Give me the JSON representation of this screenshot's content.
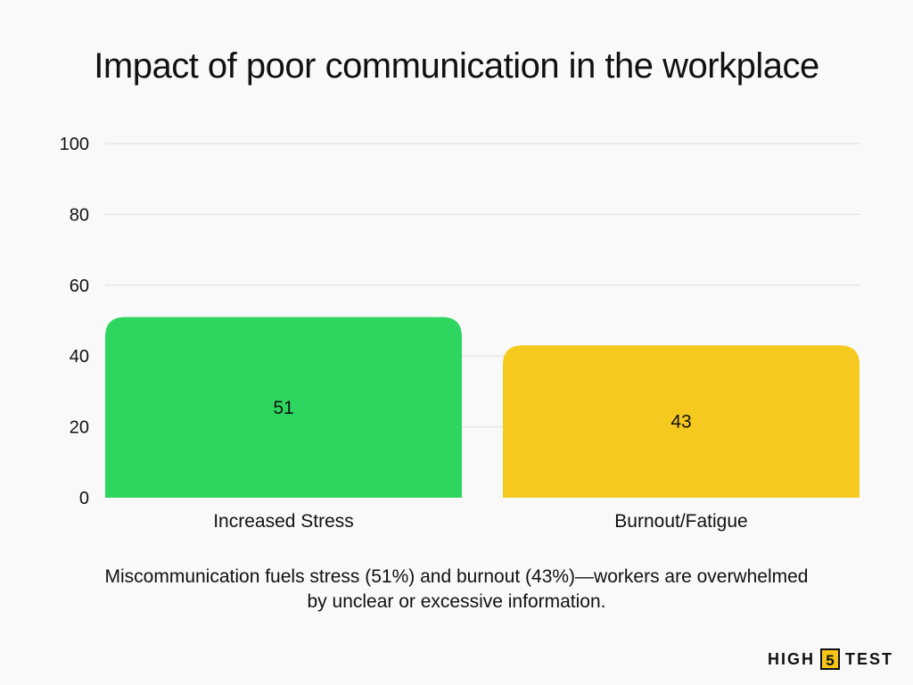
{
  "chart_data": {
    "type": "bar",
    "title": "Impact of poor communication in the workplace",
    "categories": [
      "Increased Stress",
      "Burnout/Fatigue"
    ],
    "values": [
      51,
      43
    ],
    "data_labels": [
      "51",
      "43"
    ],
    "bar_colors": [
      "#2ed660",
      "#f5c91d"
    ],
    "ylim": [
      0,
      100
    ],
    "yticks": [
      0,
      20,
      40,
      60,
      80,
      100
    ],
    "xlabel": "",
    "ylabel": "",
    "grid": true,
    "legend": "none"
  },
  "caption": "Miscommunication fuels stress (51%) and burnout (43%)—workers are overwhelmed by unclear or excessive information.",
  "brand": {
    "left": "HIGH",
    "middle": "5",
    "right": "TEST"
  }
}
